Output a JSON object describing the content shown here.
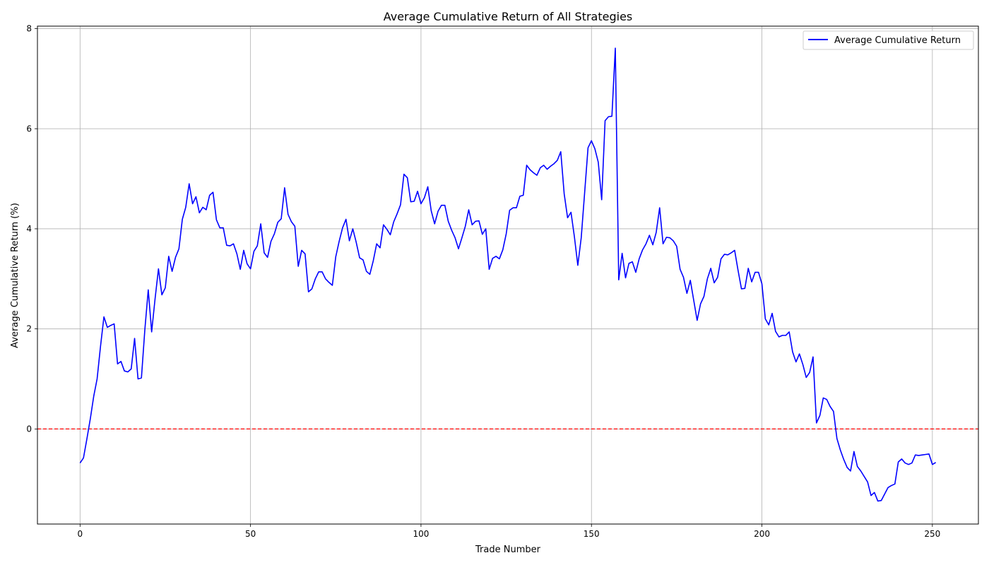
{
  "chart_data": {
    "type": "line",
    "title": "Average Cumulative Return of All Strategies",
    "xlabel": "Trade Number",
    "ylabel": "Average Cumulative Return (%)",
    "xlim": [
      -12.5,
      263.5
    ],
    "ylim": [
      -1.9,
      8.05
    ],
    "xticks": [
      0,
      50,
      100,
      150,
      200,
      250
    ],
    "yticks": [
      0,
      2,
      4,
      6,
      8
    ],
    "grid": true,
    "legend": {
      "position": "top-right"
    },
    "reference_line": {
      "y": 0,
      "style": "dashed",
      "color": "#ff0000"
    },
    "series": [
      {
        "name": "Average Cumulative Return",
        "color": "#0000ff",
        "x_start": 0,
        "x_step": 1,
        "values": [
          -0.68,
          -0.58,
          -0.2,
          0.2,
          0.65,
          1.0,
          1.65,
          2.24,
          2.03,
          2.07,
          2.1,
          1.3,
          1.35,
          1.16,
          1.14,
          1.2,
          1.81,
          1.0,
          1.02,
          1.98,
          2.78,
          1.94,
          2.6,
          3.2,
          2.68,
          2.82,
          3.45,
          3.15,
          3.43,
          3.6,
          4.19,
          4.43,
          4.9,
          4.5,
          4.64,
          4.32,
          4.43,
          4.38,
          4.67,
          4.73,
          4.18,
          4.02,
          4.02,
          3.67,
          3.66,
          3.7,
          3.5,
          3.19,
          3.57,
          3.3,
          3.2,
          3.55,
          3.66,
          4.1,
          3.52,
          3.43,
          3.75,
          3.9,
          4.13,
          4.2,
          4.82,
          4.29,
          4.14,
          4.05,
          3.25,
          3.57,
          3.5,
          2.74,
          2.8,
          3.0,
          3.14,
          3.14,
          3.0,
          2.93,
          2.87,
          3.44,
          3.75,
          4.02,
          4.19,
          3.76,
          4.0,
          3.73,
          3.42,
          3.38,
          3.15,
          3.09,
          3.36,
          3.7,
          3.62,
          4.08,
          3.99,
          3.88,
          4.14,
          4.3,
          4.48,
          5.09,
          5.02,
          4.54,
          4.55,
          4.75,
          4.5,
          4.62,
          4.84,
          4.36,
          4.1,
          4.35,
          4.47,
          4.47,
          4.15,
          3.97,
          3.82,
          3.6,
          3.82,
          4.05,
          4.38,
          4.08,
          4.15,
          4.16,
          3.89,
          4.0,
          3.19,
          3.41,
          3.45,
          3.4,
          3.58,
          3.9,
          4.37,
          4.42,
          4.42,
          4.65,
          4.67,
          5.27,
          5.18,
          5.12,
          5.07,
          5.22,
          5.27,
          5.19,
          5.25,
          5.3,
          5.37,
          5.54,
          4.7,
          4.22,
          4.33,
          3.84,
          3.27,
          3.82,
          4.72,
          5.62,
          5.76,
          5.6,
          5.33,
          4.58,
          6.16,
          6.24,
          6.25,
          7.61,
          2.98,
          3.51,
          3.02,
          3.31,
          3.34,
          3.13,
          3.4,
          3.58,
          3.7,
          3.87,
          3.68,
          3.93,
          4.42,
          3.7,
          3.83,
          3.82,
          3.76,
          3.65,
          3.19,
          3.03,
          2.71,
          2.97,
          2.57,
          2.17,
          2.5,
          2.65,
          3.0,
          3.21,
          2.92,
          3.03,
          3.4,
          3.49,
          3.48,
          3.52,
          3.57,
          3.17,
          2.8,
          2.81,
          3.21,
          2.94,
          3.13,
          3.13,
          2.9,
          2.2,
          2.08,
          2.31,
          1.95,
          1.84,
          1.87,
          1.87,
          1.94,
          1.54,
          1.34,
          1.5,
          1.29,
          1.03,
          1.13,
          1.44,
          0.12,
          0.27,
          0.62,
          0.59,
          0.45,
          0.35,
          -0.19,
          -0.42,
          -0.61,
          -0.77,
          -0.84,
          -0.45,
          -0.75,
          -0.84,
          -0.95,
          -1.06,
          -1.33,
          -1.27,
          -1.44,
          -1.43,
          -1.3,
          -1.17,
          -1.13,
          -1.1,
          -0.66,
          -0.6,
          -0.68,
          -0.71,
          -0.68,
          -0.52,
          -0.53,
          -0.52,
          -0.51,
          -0.5,
          -0.71,
          -0.67
        ]
      }
    ]
  }
}
